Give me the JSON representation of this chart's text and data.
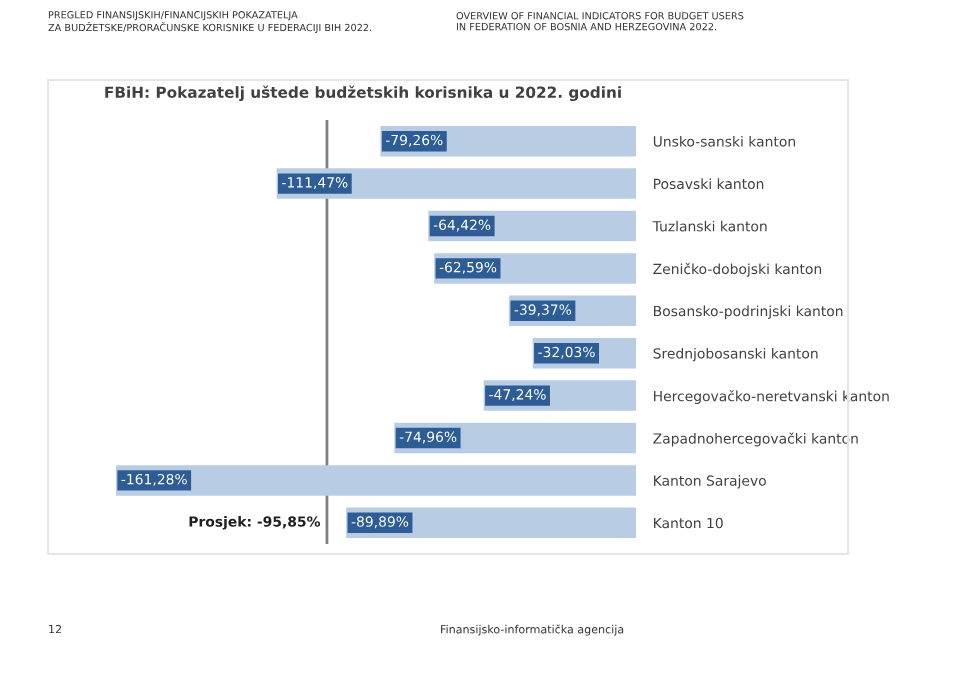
{
  "chart_data": {
    "type": "bar",
    "orientation": "horizontal",
    "title": "FBiH: Pokazatelj uštede budžetskih korisnika u 2022. godini",
    "categories": [
      "Unsko-sanski kanton",
      "Posavski kanton",
      "Tuzlanski kanton",
      "Zeničko-dobojski kanton",
      "Bosansko-podrinjski kanton",
      "Srednjobosanski kanton",
      "Hercegovačko-neretvanski kanton",
      "Zapadnohercegovački kanton",
      "Kanton Sarajevo",
      "Kanton 10"
    ],
    "values": [
      -79.26,
      -111.47,
      -64.42,
      -62.59,
      -39.37,
      -32.03,
      -47.24,
      -74.96,
      -161.28,
      -89.89
    ],
    "value_labels": [
      "-79,26%",
      "-111,47%",
      "-64,42%",
      "-62,59%",
      "-39,37%",
      "-32,03%",
      "-47,24%",
      "-74,96%",
      "-161,28%",
      "-89,89%"
    ],
    "color": "#b8cce4",
    "tick_labels": "y",
    "grid": false,
    "legend": false,
    "ref_lines": [
      {
        "axis": "x",
        "value": -95.85,
        "label": "Prosjek: -95,85%",
        "color": "#7f7f7f"
      }
    ],
    "annotations": [
      "PREGLED FINANSIJSKIH/FINANCIJSKIH POKAZATELJA\nZA BUDŽETSKE/PRORAČUNSKE KORISNIKE U FEDERACIJI BIH 2022.",
      "OVERVIEW OF FINANCIAL INDICATORS FOR BUDGET USERS\nIN FEDERATION OF BOSNIA AND HERZEGOVINA 2022.",
      "12",
      "Finansijsko-informatička agencija"
    ]
  }
}
